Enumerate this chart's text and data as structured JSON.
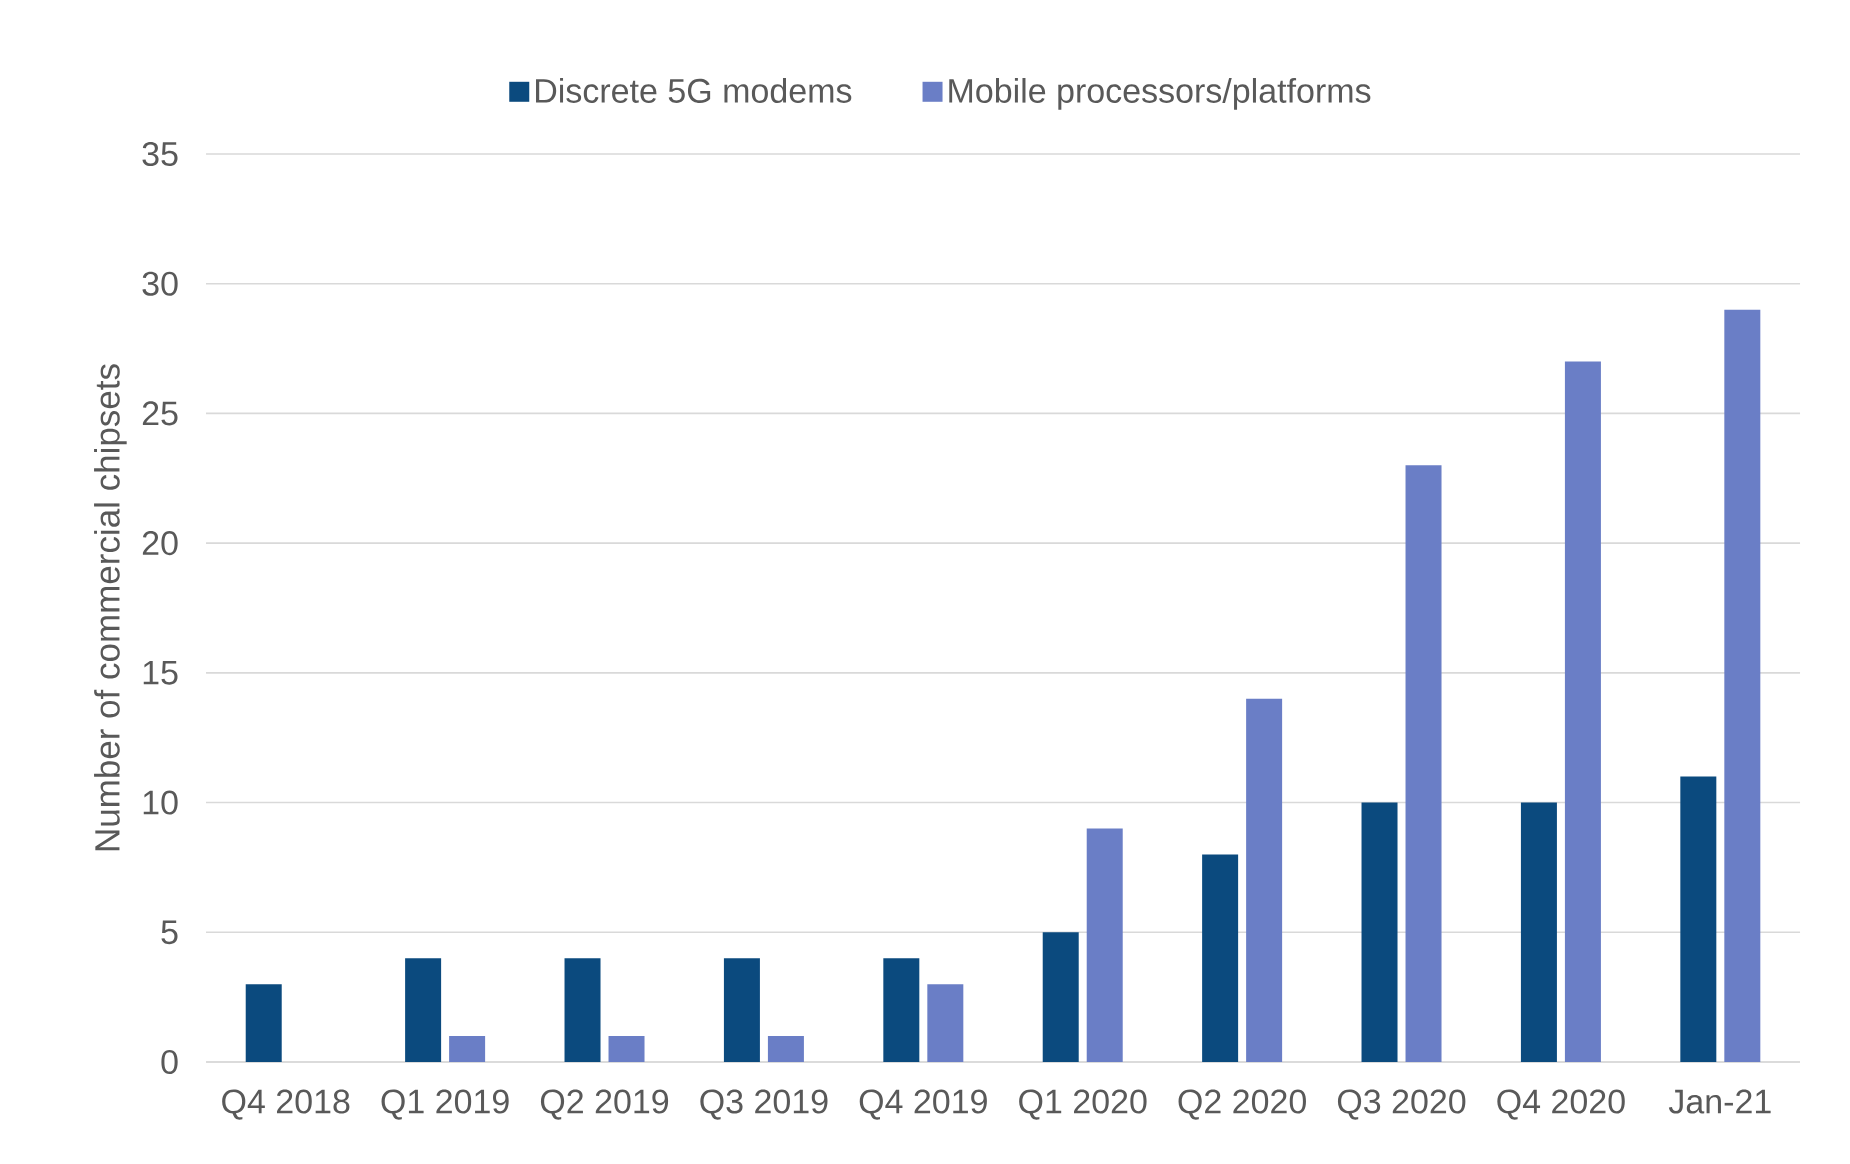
{
  "chart_data": {
    "type": "bar",
    "ylabel": "Number of commercial chipsets",
    "categories": [
      "Q4 2018",
      "Q1 2019",
      "Q2 2019",
      "Q3 2019",
      "Q4 2019",
      "Q1 2020",
      "Q2 2020",
      "Q3 2020",
      "Q4 2020",
      "Jan-21"
    ],
    "series": [
      {
        "name": "Discrete 5G modems",
        "color": "#0b4a7e",
        "values": [
          3,
          4,
          4,
          4,
          4,
          5,
          8,
          10,
          10,
          11
        ]
      },
      {
        "name": "Mobile processors/platforms",
        "color": "#6a7ec6",
        "values": [
          null,
          1,
          1,
          1,
          3,
          9,
          14,
          23,
          27,
          29
        ]
      }
    ],
    "ylim": [
      0,
      35
    ],
    "yticks": [
      0,
      5,
      10,
      15,
      20,
      25,
      30,
      35
    ],
    "grid": "y",
    "legend": "top"
  }
}
